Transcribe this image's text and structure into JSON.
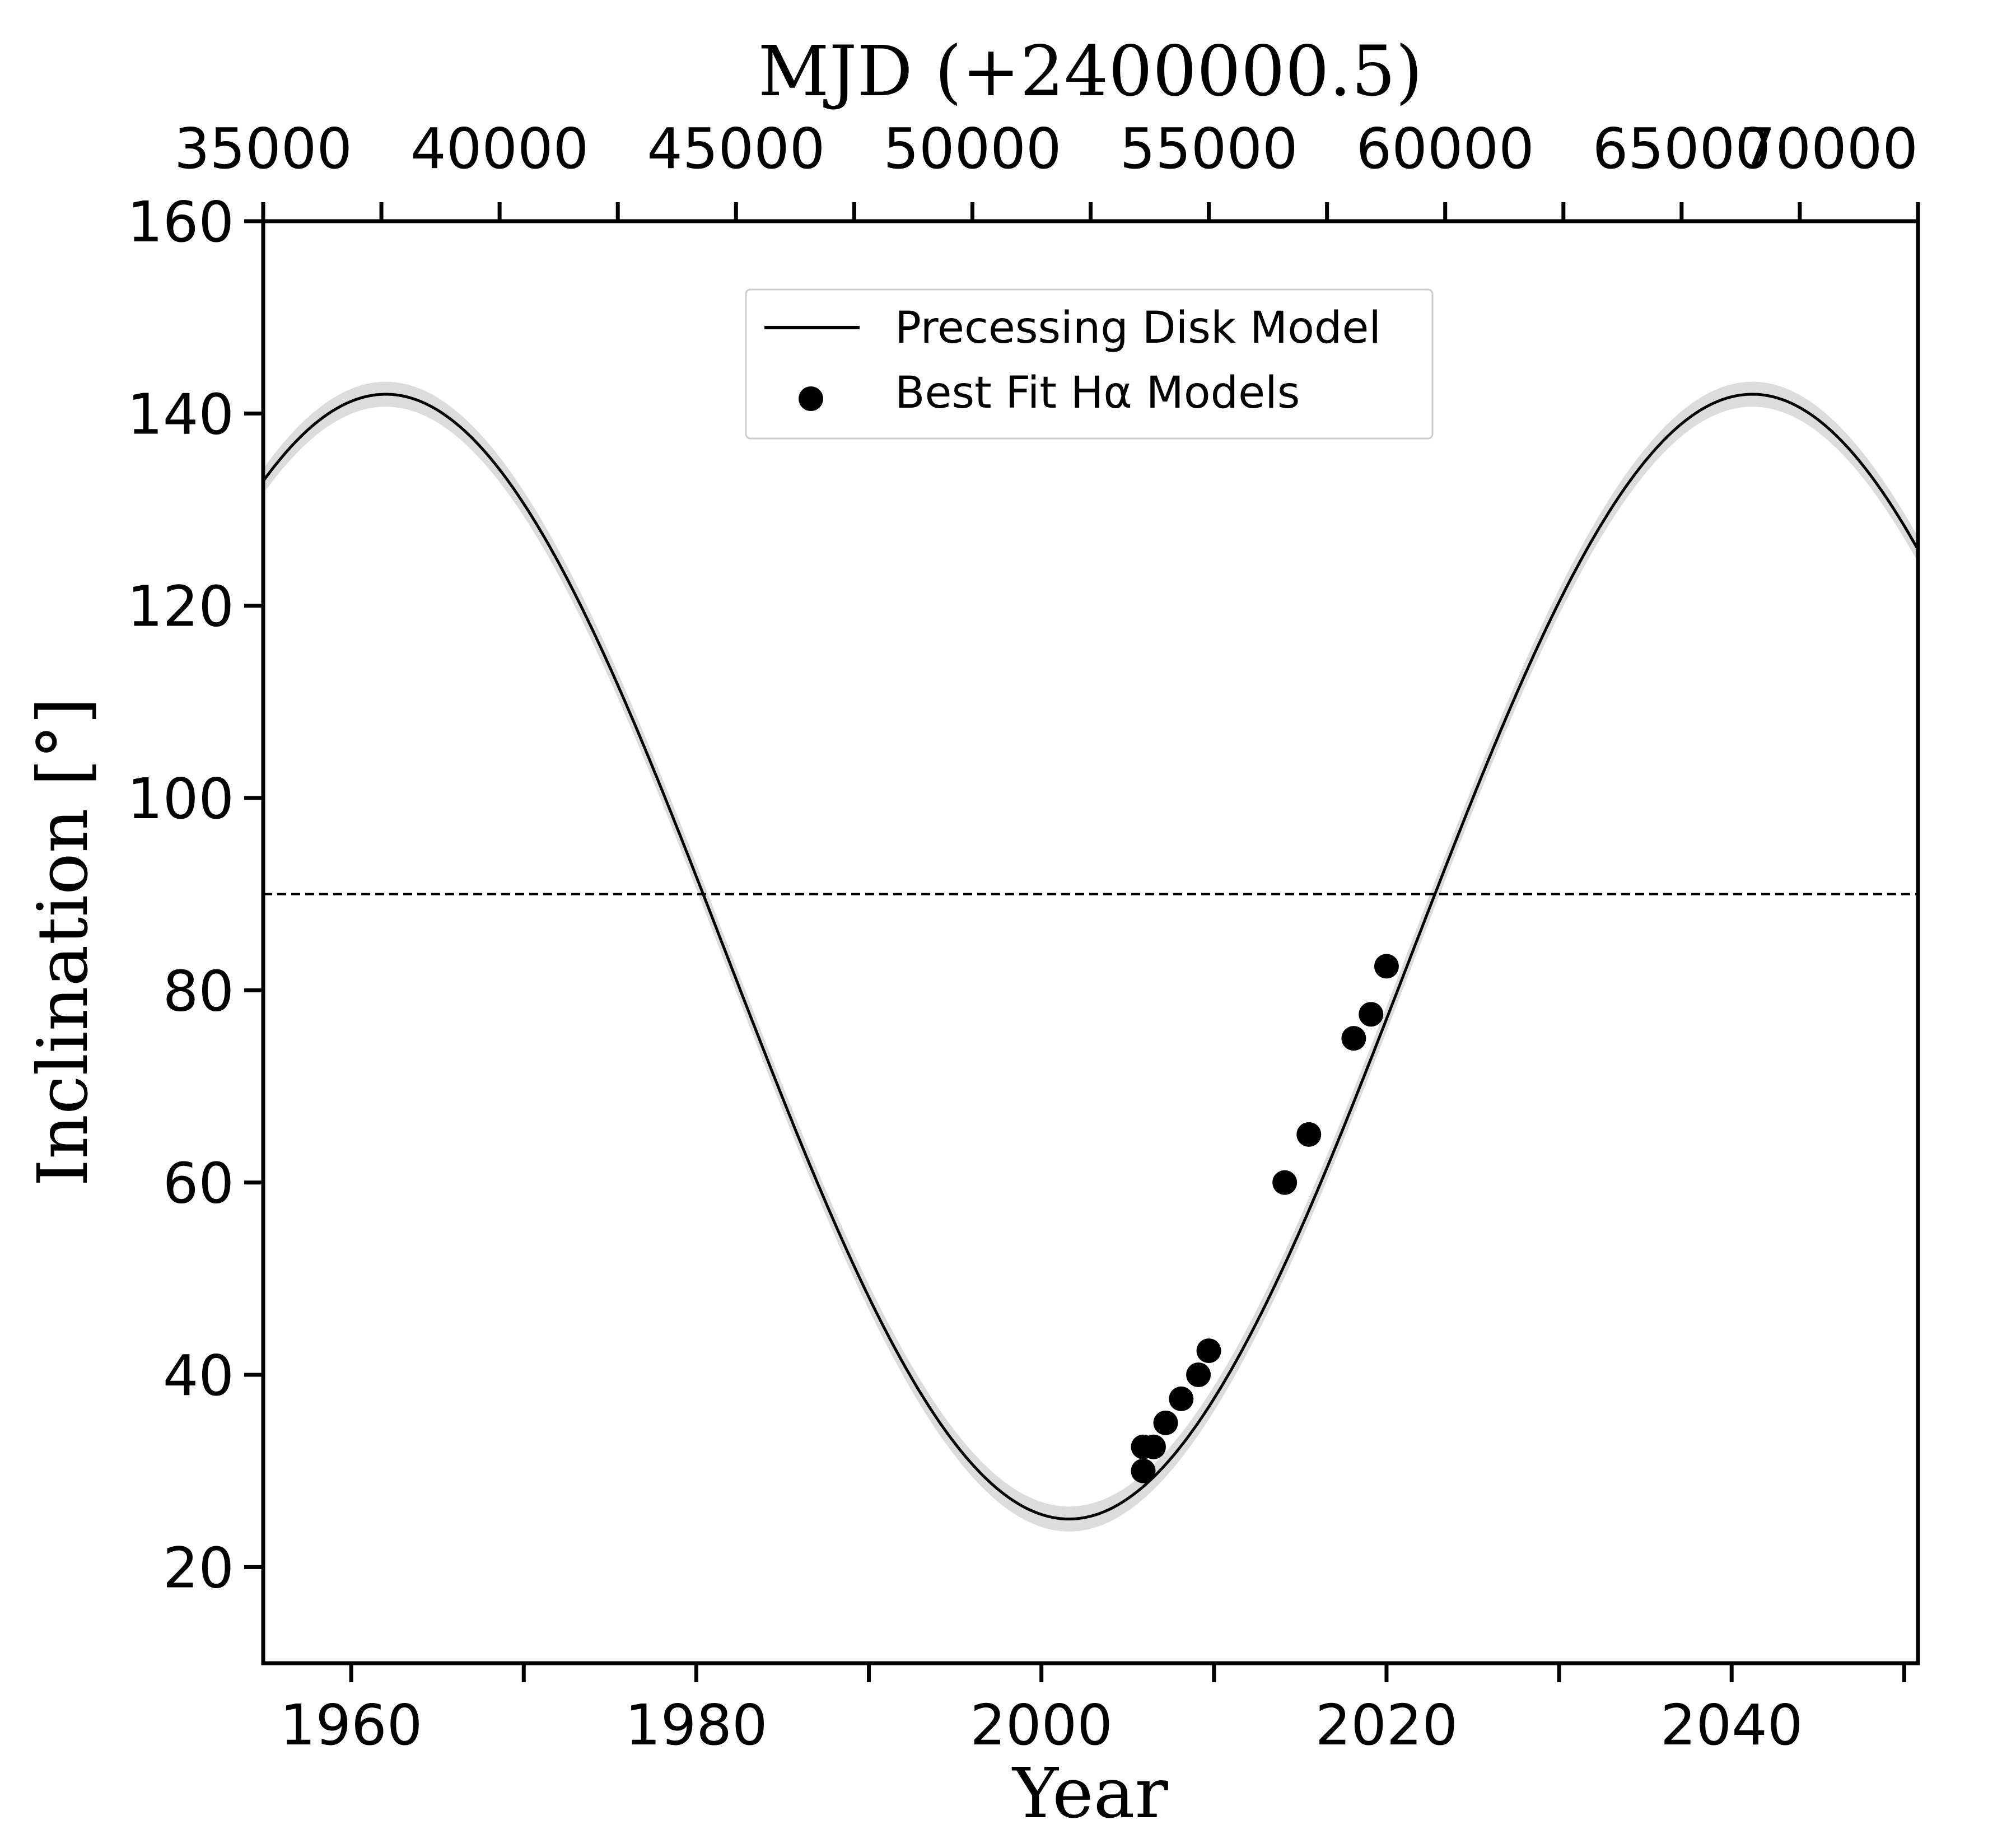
{
  "chart_data": {
    "type": "line",
    "xlabel": "Year",
    "ylabel": "Inclination [°]",
    "x2label": "MJD (+2400000.5)",
    "xlim": [
      1954.9,
      2050.8
    ],
    "ylim": [
      10,
      160
    ],
    "x2lim": [
      35000,
      70000
    ],
    "xticks": [
      1960,
      1980,
      2000,
      2020,
      2040
    ],
    "xminor_ticks": [
      1970,
      1990,
      2010,
      2030,
      2050
    ],
    "yticks": [
      20,
      40,
      60,
      80,
      100,
      120,
      140,
      160
    ],
    "x2ticks": [
      35000,
      40000,
      45000,
      50000,
      55000,
      60000,
      65000,
      70000
    ],
    "reference_line": {
      "y": 90,
      "style": "dashed",
      "color": "#000000"
    },
    "model": {
      "name": "Precessing Disk Model",
      "mean_inclination": 83.5,
      "amplitude": 58.5,
      "period_years": 79.2,
      "minimum_year": 2001.6,
      "band_halfwidth": 1.3,
      "color": "#000000",
      "band_color": "#dcdcdc"
    },
    "series": [
      {
        "name": "Best Fit Hα Models",
        "type": "scatter",
        "color": "#000000",
        "points": [
          {
            "x": 2005.9,
            "y": 30.0
          },
          {
            "x": 2005.9,
            "y": 32.5
          },
          {
            "x": 2006.5,
            "y": 32.5
          },
          {
            "x": 2007.2,
            "y": 35.0
          },
          {
            "x": 2008.1,
            "y": 37.5
          },
          {
            "x": 2009.1,
            "y": 40.0
          },
          {
            "x": 2009.7,
            "y": 42.5
          },
          {
            "x": 2014.1,
            "y": 60.0
          },
          {
            "x": 2015.5,
            "y": 65.0
          },
          {
            "x": 2018.1,
            "y": 75.0
          },
          {
            "x": 2019.1,
            "y": 77.5
          },
          {
            "x": 2020.0,
            "y": 82.5
          }
        ]
      }
    ],
    "legend": {
      "placement": "top-center",
      "entries": [
        {
          "label": "Precessing Disk Model",
          "marker": "line"
        },
        {
          "label": "Best Fit Hα Models",
          "marker": "dot"
        }
      ]
    }
  }
}
